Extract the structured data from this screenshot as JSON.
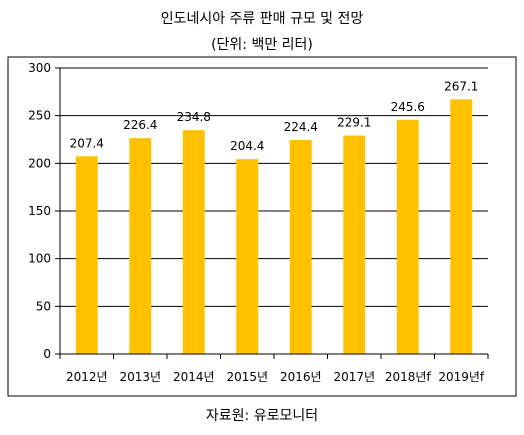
{
  "chart_data": {
    "type": "bar",
    "title": "인도네시아 주류 판매 규모 및 전망",
    "subtitle": "(단위: 백만 리터)",
    "categories": [
      "2012년",
      "2013년",
      "2014년",
      "2015년",
      "2016년",
      "2017년",
      "2018년f",
      "2019년f"
    ],
    "values": [
      207.4,
      226.4,
      234.8,
      204.4,
      224.4,
      229.1,
      245.6,
      267.1
    ],
    "value_labels": [
      "207.4",
      "226.4",
      "234.8",
      "204.4",
      "224.4",
      "229.1",
      "245.6",
      "267.1"
    ],
    "y_ticks": [
      "0",
      "50",
      "100",
      "150",
      "200",
      "250",
      "300"
    ],
    "ylim": [
      0,
      300
    ],
    "grid": true,
    "bar_color": "#FFC000",
    "source": "자료원: 유로모니터"
  }
}
